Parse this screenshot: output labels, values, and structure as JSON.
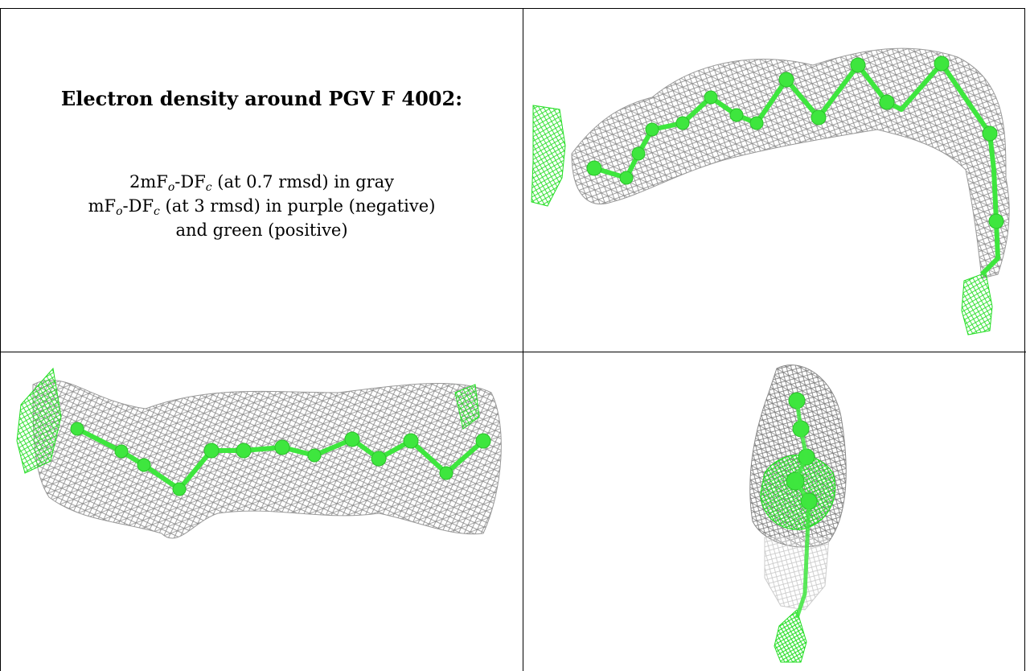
{
  "header": {
    "title": "Electron density around PGV F 4002:"
  },
  "legend": {
    "line1": {
      "prefix": "2mF",
      "sub1": "o",
      "middle": "-DF",
      "sub2": "c",
      "suffix": " (at 0.7 rmsd) in gray"
    },
    "line2": {
      "prefix": "mF",
      "sub1": "o",
      "middle": "-DF",
      "sub2": "c",
      "suffix": " (at 3 rmsd) in purple (negative)"
    },
    "line3": "and green (positive)"
  },
  "colors": {
    "mesh_gray": "#8a8a8a",
    "positive_green": "#22dd22",
    "atom_green": "#3ee63e"
  }
}
